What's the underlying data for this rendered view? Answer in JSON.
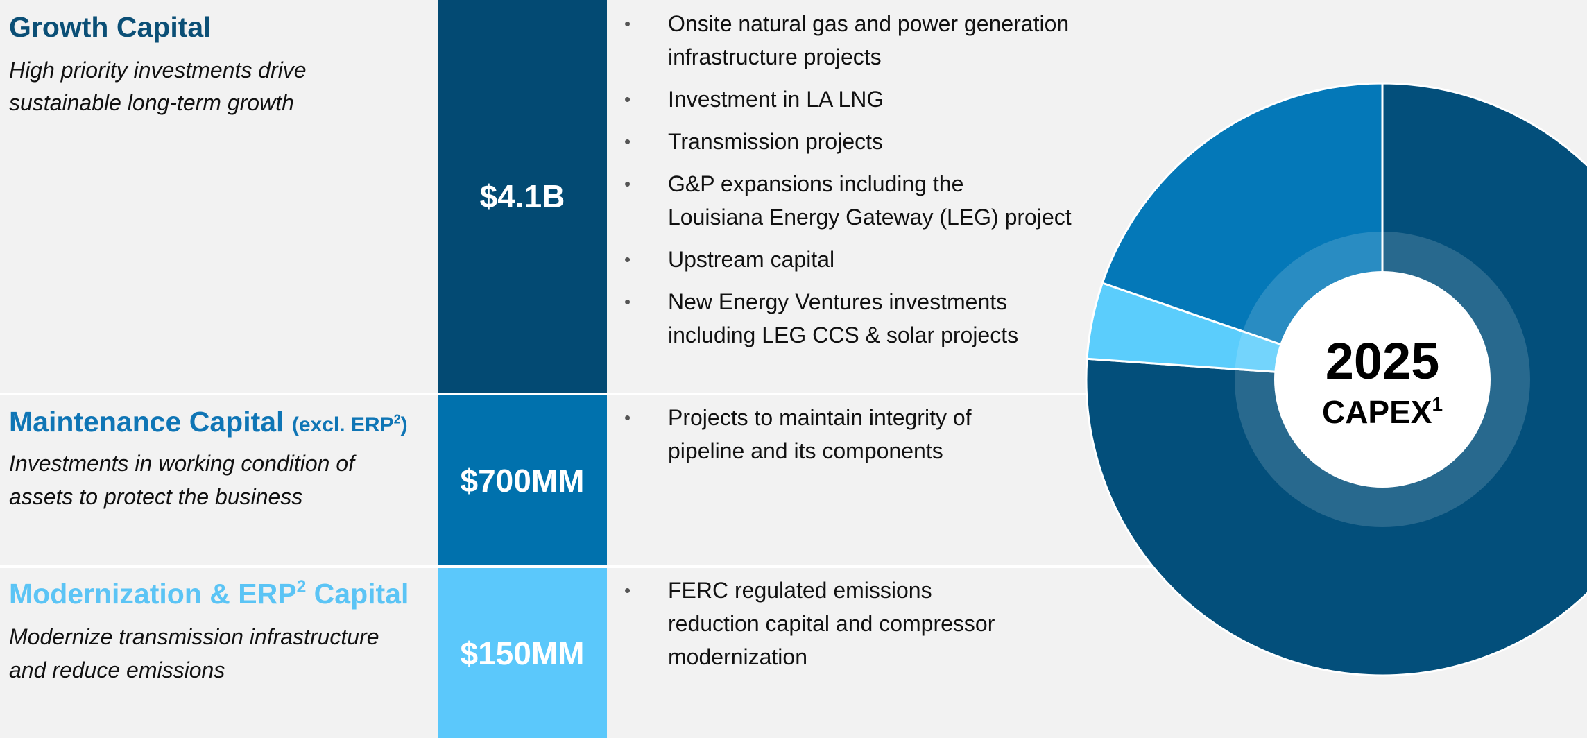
{
  "sections": [
    {
      "title": "Growth Capital",
      "subtitle": [
        "High priority investments drive",
        "sustainable long-term growth"
      ],
      "amount": "$4.1B",
      "bullets": [
        [
          "Onsite natural gas and power generation",
          "infrastructure projects"
        ],
        [
          "Investment in LA LNG"
        ],
        [
          "Transmission projects"
        ],
        [
          "G&P expansions including the",
          "Louisiana Energy Gateway (LEG) project"
        ],
        [
          "Upstream capital"
        ],
        [
          "New Energy Ventures investments",
          "including LEG CCS & solar projects"
        ]
      ]
    },
    {
      "title": "Maintenance Capital",
      "note": "(excl. ERP",
      "note_sup": "2",
      "note_end": ")",
      "subtitle": [
        "Investments in working condition of",
        "assets to protect the business"
      ],
      "amount": "$700MM",
      "bullets": [
        [
          "Projects to maintain integrity of",
          "pipeline and its components"
        ]
      ]
    },
    {
      "title": "Modernization & ERP",
      "title_sup": "2",
      "title_end": "Capital",
      "subtitle": [
        "Modernize transmission infrastructure",
        "and reduce emissions"
      ],
      "amount": "$150MM",
      "bullets": [
        [
          "FERC regulated emissions",
          "reduction capital and compressor",
          "modernization"
        ]
      ]
    }
  ],
  "donut": {
    "year": "2025",
    "label": "CAPEX",
    "label_sup": "1"
  }
}
